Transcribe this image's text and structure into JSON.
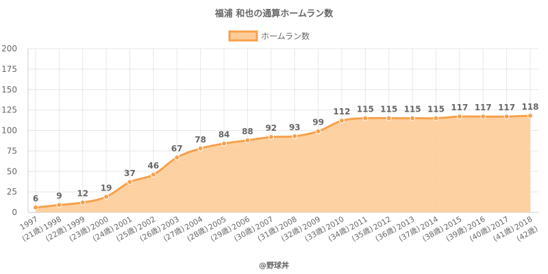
{
  "chart_data": {
    "type": "area",
    "title": "福浦 和也の通算ホームラン数",
    "legend": {
      "label": "ホームラン数",
      "position": "top-center"
    },
    "x": [
      "1997 (21歳)",
      "1998 (22歳)",
      "1999 (23歳)",
      "2000 (24歳)",
      "2001 (25歳)",
      "2002 (26歳)",
      "2003 (27歳)",
      "2004 (28歳)",
      "2005 (29歳)",
      "2006 (30歳)",
      "2007 (31歳)",
      "2008 (32歳)",
      "2009 (33歳)",
      "2010 (34歳)",
      "2011 (35歳)",
      "2012 (36歳)",
      "2013 (37歳)",
      "2014 (38歳)",
      "2015 (39歳)",
      "2016 (40歳)",
      "2017 (41歳)",
      "2018 (42歳)"
    ],
    "tick_years": [
      "1997",
      "1998",
      "1999",
      "2000",
      "2001",
      "2002",
      "2003",
      "2004",
      "2005",
      "2006",
      "2007",
      "2008",
      "2009",
      "2010",
      "2011",
      "2012",
      "2013",
      "2014",
      "2015",
      "2016",
      "2017",
      "2018"
    ],
    "tick_ages": [
      "(21歳)",
      "(22歳)",
      "(23歳)",
      "(24歳)",
      "(25歳)",
      "(26歳)",
      "(27歳)",
      "(28歳)",
      "(29歳)",
      "(30歳)",
      "(31歳)",
      "(32歳)",
      "(33歳)",
      "(34歳)",
      "(35歳)",
      "(36歳)",
      "(37歳)",
      "(38歳)",
      "(39歳)",
      "(40歳)",
      "(41歳)",
      "(42歳)"
    ],
    "series": [
      {
        "name": "ホームラン数",
        "values": [
          6,
          9,
          12,
          19,
          37,
          46,
          67,
          78,
          84,
          88,
          92,
          93,
          99,
          112,
          115,
          115,
          115,
          115,
          117,
          117,
          117,
          118
        ]
      }
    ],
    "ylim": [
      0,
      200
    ],
    "yticks": [
      0,
      25,
      50,
      75,
      100,
      125,
      150,
      175,
      200
    ],
    "grid": true,
    "colors": {
      "line": "#f7a04b",
      "fill": "#fdcc98",
      "grid": "#e6e6e6",
      "text": "#666666"
    }
  },
  "footer": "@野球丼"
}
